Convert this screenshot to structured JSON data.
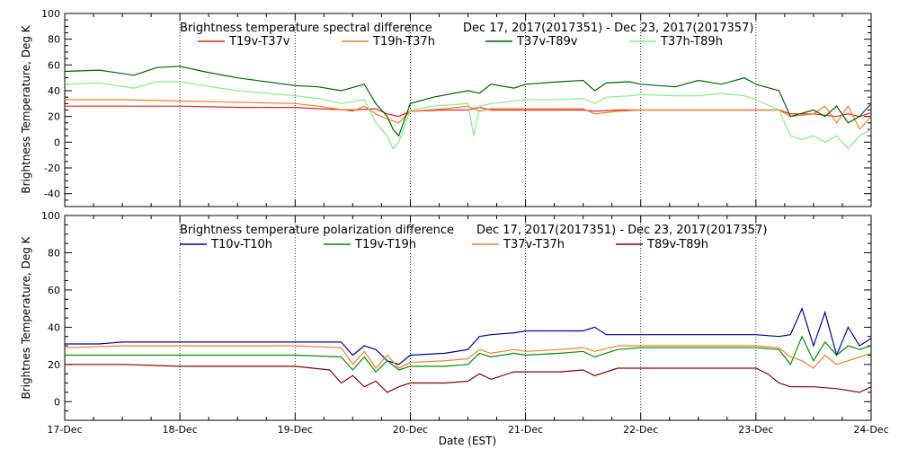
{
  "chart_data": [
    {
      "type": "line",
      "title": "Brightness temperature spectral difference",
      "date_range": "Dec 17, 2017(2017351) - Dec 23, 2017(2017357)",
      "ylabel": "Brightness Temperature, Deg K",
      "xlabel": "",
      "ylim": [
        -50,
        100
      ],
      "yticks": [
        -40,
        -20,
        0,
        20,
        40,
        60,
        80,
        100
      ],
      "xlim": [
        0,
        7
      ],
      "grid": "vertical dotted at each day",
      "legend_position": "top, inside plot",
      "series": [
        {
          "name": "T19v-T37v",
          "color": "#e82020",
          "x": [
            0,
            0.5,
            1,
            1.5,
            2,
            2.2,
            2.5,
            2.7,
            2.8,
            2.9,
            3,
            3.3,
            3.5,
            3.6,
            3.7,
            4,
            4.3,
            4.5,
            4.6,
            4.8,
            5,
            5.5,
            6,
            6.2,
            6.3,
            6.5,
            6.7,
            6.8,
            6.9,
            7
          ],
          "y": [
            28,
            28,
            28,
            27,
            27,
            26,
            25,
            26,
            22,
            20,
            24,
            25,
            25,
            27,
            25,
            25,
            25,
            25,
            24,
            25,
            25,
            25,
            25,
            25,
            22,
            22,
            20,
            22,
            20,
            23
          ]
        },
        {
          "name": "T19h-T37h",
          "color": "#f08020",
          "x": [
            0,
            0.5,
            1,
            1.5,
            2,
            2.2,
            2.5,
            2.6,
            2.7,
            2.8,
            2.9,
            3,
            3.3,
            3.5,
            3.6,
            3.7,
            4,
            4.3,
            4.5,
            4.6,
            4.8,
            5,
            5.5,
            6,
            6.2,
            6.3,
            6.5,
            6.6,
            6.7,
            6.8,
            6.9,
            7
          ],
          "y": [
            33,
            33,
            32,
            31,
            30,
            28,
            24,
            28,
            22,
            18,
            15,
            24,
            26,
            28,
            24,
            26,
            26,
            26,
            26,
            22,
            24,
            25,
            25,
            25,
            25,
            20,
            22,
            28,
            15,
            28,
            10,
            20
          ]
        },
        {
          "name": "T37v-T89v",
          "color": "#006400",
          "x": [
            0,
            0.3,
            0.6,
            0.8,
            1,
            1.2,
            1.5,
            2,
            2.2,
            2.4,
            2.6,
            2.7,
            2.8,
            2.85,
            2.9,
            3,
            3.2,
            3.5,
            3.6,
            3.7,
            3.9,
            4,
            4.3,
            4.5,
            4.6,
            4.7,
            4.9,
            5,
            5.3,
            5.5,
            5.7,
            5.9,
            6,
            6.2,
            6.3,
            6.5,
            6.6,
            6.7,
            6.8,
            6.9,
            7
          ],
          "y": [
            55,
            56,
            52,
            58,
            59,
            55,
            50,
            44,
            43,
            40,
            45,
            30,
            20,
            10,
            5,
            30,
            35,
            40,
            38,
            45,
            42,
            45,
            47,
            48,
            40,
            46,
            47,
            45,
            43,
            48,
            45,
            50,
            45,
            40,
            20,
            25,
            20,
            28,
            15,
            20,
            30
          ]
        },
        {
          "name": "T37h-T89h",
          "color": "#80f080",
          "x": [
            0,
            0.3,
            0.6,
            0.8,
            1,
            1.2,
            1.5,
            2,
            2.2,
            2.4,
            2.6,
            2.7,
            2.8,
            2.85,
            2.9,
            3,
            3.2,
            3.5,
            3.55,
            3.6,
            3.7,
            3.9,
            4,
            4.3,
            4.5,
            4.6,
            4.7,
            4.9,
            5,
            5.3,
            5.5,
            5.7,
            5.9,
            6,
            6.2,
            6.3,
            6.4,
            6.5,
            6.6,
            6.7,
            6.8,
            6.9,
            7
          ],
          "y": [
            45,
            46,
            42,
            47,
            47,
            44,
            40,
            36,
            34,
            30,
            33,
            15,
            5,
            -5,
            0,
            25,
            28,
            30,
            5,
            28,
            30,
            32,
            33,
            33,
            34,
            30,
            35,
            36,
            37,
            36,
            36,
            38,
            36,
            33,
            25,
            5,
            2,
            5,
            0,
            5,
            -5,
            5,
            10
          ]
        }
      ]
    },
    {
      "type": "line",
      "title": "Brightness temperature polarization difference",
      "date_range": "Dec 17, 2017(2017351) - Dec 23, 2017(2017357)",
      "ylabel": "Brightnes Temperature, Deg K",
      "xlabel": "Date (EST)",
      "ylim": [
        -10,
        100
      ],
      "yticks": [
        0,
        20,
        40,
        60,
        80,
        100
      ],
      "xlim": [
        0,
        7
      ],
      "xticks": [
        "17-Dec",
        "18-Dec",
        "19-Dec",
        "20-Dec",
        "21-Dec",
        "22-Dec",
        "23-Dec",
        "24-Dec"
      ],
      "grid": "vertical dotted at each day",
      "legend_position": "top, inside plot",
      "series": [
        {
          "name": "T10v-T10h",
          "color": "#0000a0",
          "x": [
            0,
            0.3,
            0.5,
            1,
            2,
            2.4,
            2.5,
            2.6,
            2.7,
            2.8,
            2.9,
            3,
            3.3,
            3.5,
            3.6,
            3.7,
            3.9,
            4,
            4.3,
            4.5,
            4.6,
            4.7,
            4.9,
            5,
            5.5,
            6,
            6.2,
            6.3,
            6.4,
            6.5,
            6.6,
            6.7,
            6.8,
            6.9,
            7
          ],
          "y": [
            31,
            31,
            32,
            32,
            32,
            32,
            25,
            30,
            28,
            22,
            20,
            25,
            26,
            28,
            35,
            36,
            37,
            38,
            38,
            38,
            40,
            36,
            36,
            36,
            36,
            36,
            35,
            36,
            50,
            30,
            48,
            25,
            40,
            30,
            34
          ]
        },
        {
          "name": "T19v-T19h",
          "color": "#009000",
          "x": [
            0,
            0.5,
            1,
            2,
            2.4,
            2.5,
            2.6,
            2.7,
            2.8,
            2.9,
            3,
            3.3,
            3.5,
            3.6,
            3.7,
            3.9,
            4,
            4.3,
            4.5,
            4.6,
            4.8,
            5,
            5.5,
            6,
            6.2,
            6.3,
            6.4,
            6.5,
            6.6,
            6.7,
            6.8,
            6.9,
            7
          ],
          "y": [
            25,
            25,
            25,
            25,
            24,
            17,
            24,
            16,
            22,
            17,
            19,
            19,
            20,
            26,
            24,
            26,
            25,
            26,
            27,
            24,
            28,
            29,
            29,
            29,
            28,
            20,
            35,
            22,
            32,
            25,
            30,
            28,
            30
          ]
        },
        {
          "name": "T37v-T37h",
          "color": "#f08020",
          "x": [
            0,
            0.5,
            1,
            2,
            2.4,
            2.5,
            2.6,
            2.7,
            2.8,
            2.9,
            3,
            3.3,
            3.5,
            3.6,
            3.7,
            3.9,
            4,
            4.3,
            4.5,
            4.6,
            4.8,
            5,
            5.5,
            6,
            6.2,
            6.3,
            6.4,
            6.5,
            6.6,
            6.7,
            6.8,
            6.9,
            7
          ],
          "y": [
            29,
            30,
            30,
            30,
            29,
            20,
            27,
            18,
            25,
            18,
            21,
            22,
            23,
            28,
            26,
            28,
            27,
            28,
            29,
            27,
            30,
            30,
            30,
            30,
            29,
            24,
            22,
            18,
            25,
            20,
            22,
            24,
            26
          ]
        },
        {
          "name": "T89v-T89h",
          "color": "#8b0000",
          "x": [
            0,
            0.5,
            1,
            2,
            2.3,
            2.4,
            2.5,
            2.6,
            2.7,
            2.8,
            2.9,
            3,
            3.3,
            3.5,
            3.6,
            3.7,
            3.9,
            4,
            4.3,
            4.5,
            4.6,
            4.8,
            5,
            5.5,
            6,
            6.1,
            6.2,
            6.3,
            6.5,
            6.7,
            6.8,
            6.9,
            7
          ],
          "y": [
            20,
            20,
            19,
            19,
            17,
            10,
            14,
            8,
            11,
            5,
            8,
            10,
            10,
            11,
            15,
            12,
            16,
            16,
            16,
            17,
            14,
            18,
            18,
            18,
            18,
            15,
            10,
            8,
            8,
            7,
            6,
            5,
            8
          ]
        }
      ]
    }
  ]
}
